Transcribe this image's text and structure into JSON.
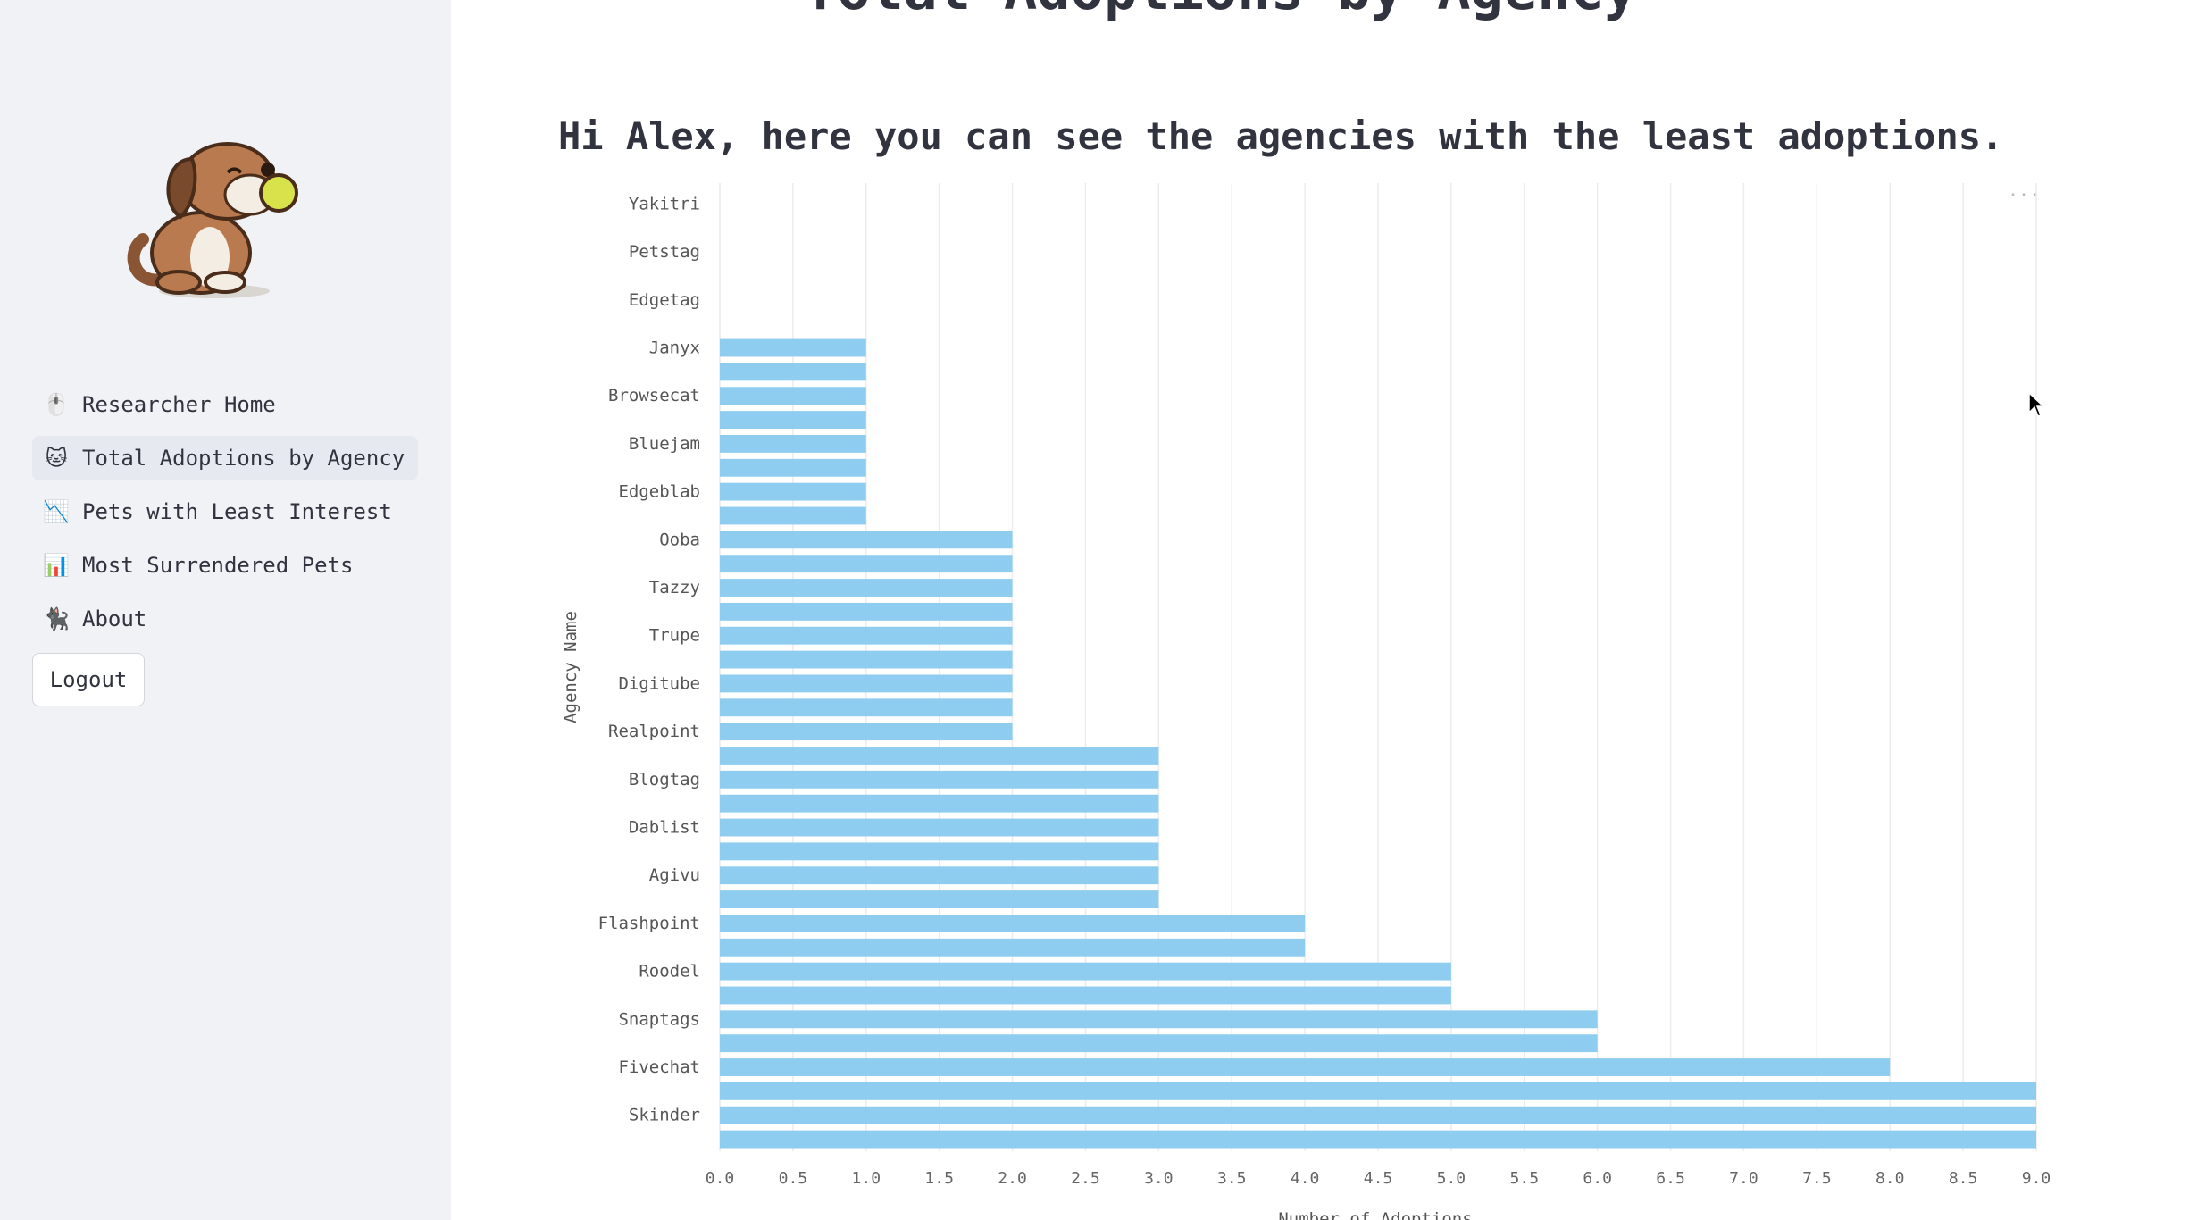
{
  "sidebar": {
    "logo_icon": "dog-mascot-icon",
    "nav": [
      {
        "icon": "🖱️",
        "label": "Researcher Home",
        "active": false
      },
      {
        "icon": "🐱",
        "label": "Total Adoptions by Agency",
        "active": true
      },
      {
        "icon": "📉",
        "label": "Pets with Least Interest",
        "active": false
      },
      {
        "icon": "📊",
        "label": "Most Surrendered Pets",
        "active": false
      },
      {
        "icon": "🐈‍⬛",
        "label": "About",
        "active": false
      }
    ],
    "logout_label": "Logout"
  },
  "main": {
    "partial_title": "Total Adoptions by Agency",
    "subtitle": "Hi Alex, here you can see the agencies with the least adoptions."
  },
  "chart_data": {
    "type": "bar",
    "orientation": "horizontal",
    "xlabel": "Number of Adoptions",
    "ylabel": "Agency Name",
    "xlim": [
      0,
      9
    ],
    "xticks": [
      "0.0",
      "0.5",
      "1.0",
      "1.5",
      "2.0",
      "2.5",
      "3.0",
      "3.5",
      "4.0",
      "4.5",
      "5.0",
      "5.5",
      "6.0",
      "6.5",
      "7.0",
      "7.5",
      "8.0",
      "8.5",
      "9.0"
    ],
    "bar_color": "#8ecdf0",
    "grid": true,
    "rows": [
      {
        "label": "Yakitri",
        "value": 0
      },
      {
        "label": "",
        "value": 0
      },
      {
        "label": "Petstag",
        "value": 0
      },
      {
        "label": "",
        "value": 0
      },
      {
        "label": "Edgetag",
        "value": 0
      },
      {
        "label": "",
        "value": 0
      },
      {
        "label": "Janyx",
        "value": 1
      },
      {
        "label": "",
        "value": 1
      },
      {
        "label": "Browsecat",
        "value": 1
      },
      {
        "label": "",
        "value": 1
      },
      {
        "label": "Bluejam",
        "value": 1
      },
      {
        "label": "",
        "value": 1
      },
      {
        "label": "Edgeblab",
        "value": 1
      },
      {
        "label": "",
        "value": 1
      },
      {
        "label": "Ooba",
        "value": 2
      },
      {
        "label": "",
        "value": 2
      },
      {
        "label": "Tazzy",
        "value": 2
      },
      {
        "label": "",
        "value": 2
      },
      {
        "label": "Trupe",
        "value": 2
      },
      {
        "label": "",
        "value": 2
      },
      {
        "label": "Digitube",
        "value": 2
      },
      {
        "label": "",
        "value": 2
      },
      {
        "label": "Realpoint",
        "value": 2
      },
      {
        "label": "",
        "value": 3
      },
      {
        "label": "Blogtag",
        "value": 3
      },
      {
        "label": "",
        "value": 3
      },
      {
        "label": "Dablist",
        "value": 3
      },
      {
        "label": "",
        "value": 3
      },
      {
        "label": "Agivu",
        "value": 3
      },
      {
        "label": "",
        "value": 3
      },
      {
        "label": "Flashpoint",
        "value": 4
      },
      {
        "label": "",
        "value": 4
      },
      {
        "label": "Roodel",
        "value": 5
      },
      {
        "label": "",
        "value": 5
      },
      {
        "label": "Snaptags",
        "value": 6
      },
      {
        "label": "",
        "value": 6
      },
      {
        "label": "Fivechat",
        "value": 8
      },
      {
        "label": "",
        "value": 9
      },
      {
        "label": "Skinder",
        "value": 9
      },
      {
        "label": "",
        "value": 9
      }
    ]
  }
}
